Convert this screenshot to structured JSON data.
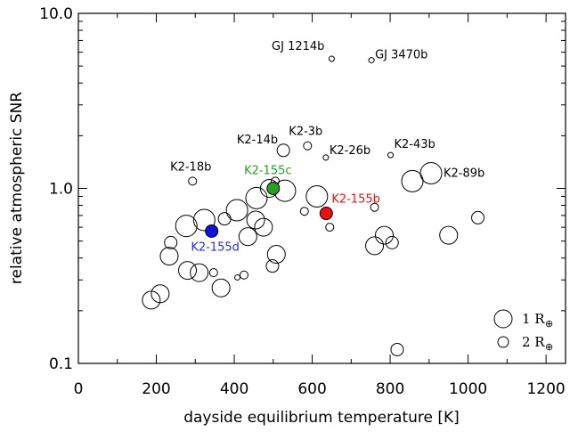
{
  "chart_data": {
    "type": "scatter",
    "title": "",
    "xlabel": "dayside equilibrium temperature [K]",
    "ylabel": "relative atmospheric SNR",
    "xlim": [
      0,
      1250
    ],
    "ylim": [
      0.1,
      10.0
    ],
    "yscale": "log",
    "xticks": [
      0,
      200,
      400,
      600,
      800,
      1000,
      1200
    ],
    "xtick_labels": [
      "0",
      "200",
      "400",
      "600",
      "800",
      "1000",
      "1200"
    ],
    "yticks": [
      0.1,
      1.0,
      10.0
    ],
    "ytick_labels": [
      "0.1",
      "1.0",
      "10.0"
    ],
    "grid": false,
    "legend_position": "bottom-right",
    "legend": [
      {
        "label": "1 R",
        "subscript": "⊕",
        "radius_earth": 1
      },
      {
        "label": "2 R",
        "subscript": "⊕",
        "radius_earth": 2
      }
    ],
    "marker_note": "marker size decreases with planet radius",
    "points": [
      {
        "x": 187,
        "y": 0.23,
        "size": 3,
        "fill": "none",
        "label": ""
      },
      {
        "x": 210,
        "y": 0.25,
        "size": 3,
        "fill": "none",
        "label": ""
      },
      {
        "x": 233,
        "y": 0.41,
        "size": 3,
        "fill": "none",
        "label": ""
      },
      {
        "x": 237,
        "y": 0.49,
        "size": 2,
        "fill": "none",
        "label": ""
      },
      {
        "x": 277,
        "y": 0.61,
        "size": 4,
        "fill": "none",
        "label": ""
      },
      {
        "x": 280,
        "y": 0.34,
        "size": 3,
        "fill": "none",
        "label": ""
      },
      {
        "x": 310,
        "y": 0.33,
        "size": 3,
        "fill": "none",
        "label": ""
      },
      {
        "x": 323,
        "y": 0.66,
        "size": 4,
        "fill": "none",
        "label": ""
      },
      {
        "x": 347,
        "y": 0.33,
        "size": 1,
        "fill": "none",
        "label": ""
      },
      {
        "x": 366,
        "y": 0.27,
        "size": 3,
        "fill": "none",
        "label": ""
      },
      {
        "x": 375,
        "y": 0.67,
        "size": 2,
        "fill": "none",
        "label": ""
      },
      {
        "x": 407,
        "y": 0.75,
        "size": 4,
        "fill": "none",
        "label": ""
      },
      {
        "x": 408,
        "y": 0.31,
        "size": 0,
        "fill": "none",
        "label": ""
      },
      {
        "x": 425,
        "y": 0.32,
        "size": 1,
        "fill": "none",
        "label": ""
      },
      {
        "x": 435,
        "y": 0.53,
        "size": 3,
        "fill": "none",
        "label": ""
      },
      {
        "x": 455,
        "y": 0.66,
        "size": 3,
        "fill": "none",
        "label": ""
      },
      {
        "x": 457,
        "y": 0.88,
        "size": 4,
        "fill": "none",
        "label": ""
      },
      {
        "x": 475,
        "y": 0.6,
        "size": 3,
        "fill": "none",
        "label": ""
      },
      {
        "x": 490,
        "y": 1.0,
        "size": 3,
        "fill": "none",
        "label": ""
      },
      {
        "x": 498,
        "y": 0.36,
        "size": 2,
        "fill": "none",
        "label": ""
      },
      {
        "x": 508,
        "y": 0.42,
        "size": 3,
        "fill": "none",
        "label": ""
      },
      {
        "x": 530,
        "y": 0.97,
        "size": 4,
        "fill": "none",
        "label": ""
      },
      {
        "x": 580,
        "y": 0.74,
        "size": 1,
        "fill": "none",
        "label": ""
      },
      {
        "x": 612,
        "y": 0.9,
        "size": 4,
        "fill": "none",
        "label": ""
      },
      {
        "x": 645,
        "y": 0.6,
        "size": 1,
        "fill": "none",
        "label": ""
      },
      {
        "x": 760,
        "y": 0.47,
        "size": 3,
        "fill": "none",
        "label": ""
      },
      {
        "x": 785,
        "y": 0.54,
        "size": 3,
        "fill": "none",
        "label": ""
      },
      {
        "x": 805,
        "y": 0.49,
        "size": 2,
        "fill": "none",
        "label": ""
      },
      {
        "x": 818,
        "y": 0.12,
        "size": 2,
        "fill": "none",
        "label": ""
      },
      {
        "x": 950,
        "y": 0.54,
        "size": 3,
        "fill": "none",
        "label": ""
      },
      {
        "x": 1025,
        "y": 0.68,
        "size": 2,
        "fill": "none",
        "label": ""
      },
      {
        "x": 650,
        "y": 5.5,
        "size": 0,
        "fill": "none",
        "label": "GJ 1214b"
      },
      {
        "x": 752,
        "y": 5.4,
        "size": 0,
        "fill": "none",
        "label": "GJ 3470b"
      },
      {
        "x": 293,
        "y": 1.1,
        "size": 1,
        "fill": "none",
        "label": "K2-18b"
      },
      {
        "x": 526,
        "y": 1.65,
        "size": 2,
        "fill": "none",
        "label": "K2-14b"
      },
      {
        "x": 588,
        "y": 1.75,
        "size": 1,
        "fill": "none",
        "label": "K2-3b"
      },
      {
        "x": 635,
        "y": 1.5,
        "size": 0,
        "fill": "none",
        "label": "K2-26b"
      },
      {
        "x": 801,
        "y": 1.55,
        "size": 0,
        "fill": "none",
        "label": "K2-43b"
      },
      {
        "x": 857,
        "y": 1.1,
        "size": 4,
        "fill": "none",
        "label": ""
      },
      {
        "x": 905,
        "y": 1.22,
        "size": 4,
        "fill": "none",
        "label": "K2-89b"
      },
      {
        "x": 760,
        "y": 0.78,
        "size": 1,
        "fill": "none",
        "label": ""
      },
      {
        "x": 505,
        "y": 1.1,
        "size": 1,
        "fill": "none",
        "label": ""
      },
      {
        "x": 500,
        "y": 1.0,
        "size": 2,
        "fill": "#2a9d2a",
        "label": "K2-155c",
        "label_color": "#2a9d2a"
      },
      {
        "x": 636,
        "y": 0.72,
        "size": 2,
        "fill": "#ee1111",
        "label": "K2-155b",
        "label_color": "#ee1111"
      },
      {
        "x": 342,
        "y": 0.57,
        "size": 2,
        "fill": "#1111dd",
        "label": "K2-155d",
        "label_color": "#2a2ae0"
      }
    ]
  }
}
